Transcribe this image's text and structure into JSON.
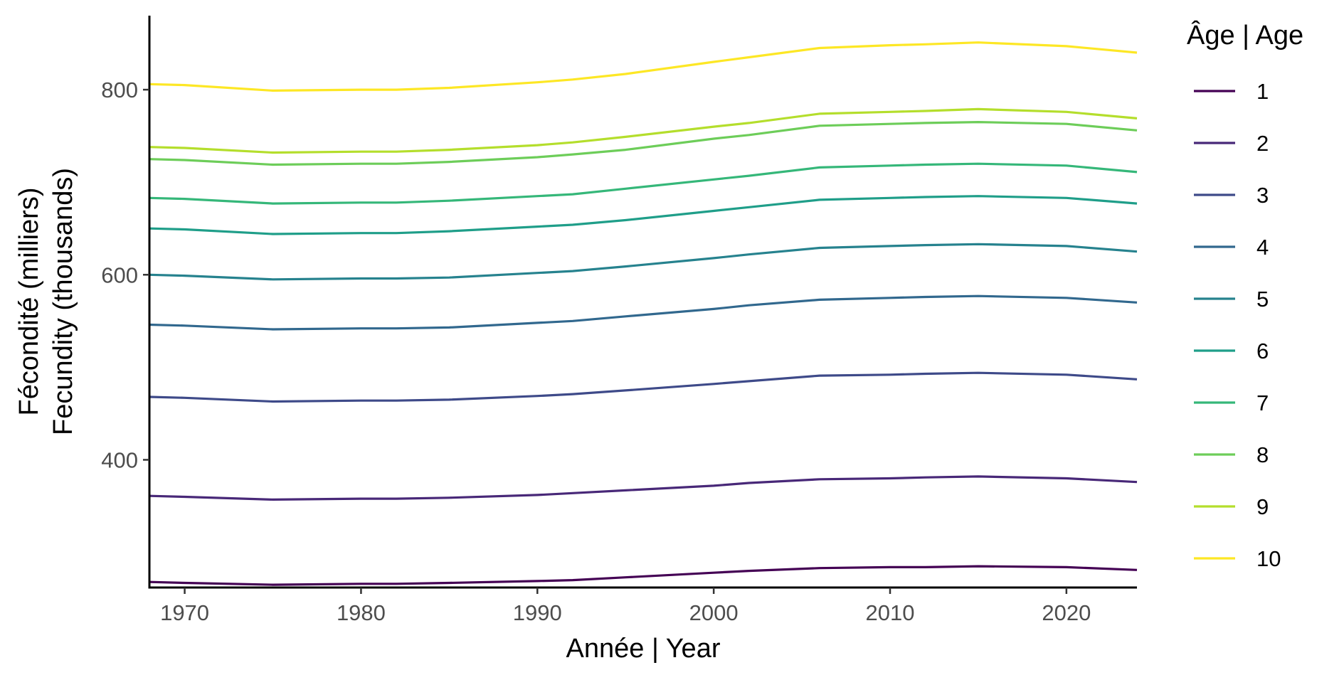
{
  "chart_data": {
    "type": "line",
    "title": "",
    "xlabel": "Année | Year",
    "ylabel_lines": [
      "Fécondité (milliers)",
      "Fecundity (thousands)"
    ],
    "xlim": [
      1968,
      2024
    ],
    "ylim": [
      262,
      880
    ],
    "x_ticks": [
      1970,
      1980,
      1990,
      2000,
      2010,
      2020
    ],
    "y_ticks": [
      400,
      600,
      800
    ],
    "grid": false,
    "legend": {
      "title": "Âge | Age",
      "position": "right"
    },
    "x": [
      1968,
      1970,
      1975,
      1980,
      1982,
      1985,
      1990,
      1992,
      1995,
      2000,
      2002,
      2006,
      2010,
      2012,
      2015,
      2020,
      2024
    ],
    "series": [
      {
        "name": "1",
        "color": "#440154",
        "values": [
          268,
          267,
          265,
          266,
          266,
          267,
          269,
          270,
          273,
          278,
          280,
          283,
          284,
          284,
          285,
          284,
          281
        ]
      },
      {
        "name": "2",
        "color": "#482878",
        "values": [
          361,
          360,
          357,
          358,
          358,
          359,
          362,
          364,
          367,
          372,
          375,
          379,
          380,
          381,
          382,
          380,
          376
        ]
      },
      {
        "name": "3",
        "color": "#3E4A89",
        "values": [
          468,
          467,
          463,
          464,
          464,
          465,
          469,
          471,
          475,
          482,
          485,
          491,
          492,
          493,
          494,
          492,
          487
        ]
      },
      {
        "name": "4",
        "color": "#31688E",
        "values": [
          546,
          545,
          541,
          542,
          542,
          543,
          548,
          550,
          555,
          563,
          567,
          573,
          575,
          576,
          577,
          575,
          570
        ]
      },
      {
        "name": "5",
        "color": "#26828E",
        "values": [
          600,
          599,
          595,
          596,
          596,
          597,
          602,
          604,
          609,
          618,
          622,
          629,
          631,
          632,
          633,
          631,
          625
        ]
      },
      {
        "name": "6",
        "color": "#1F9E89",
        "values": [
          650,
          649,
          644,
          645,
          645,
          647,
          652,
          654,
          659,
          669,
          673,
          681,
          683,
          684,
          685,
          683,
          677
        ]
      },
      {
        "name": "7",
        "color": "#35B779",
        "values": [
          683,
          682,
          677,
          678,
          678,
          680,
          685,
          687,
          693,
          703,
          707,
          716,
          718,
          719,
          720,
          718,
          711
        ]
      },
      {
        "name": "8",
        "color": "#6DCD59",
        "values": [
          725,
          724,
          719,
          720,
          720,
          722,
          727,
          730,
          735,
          747,
          751,
          761,
          763,
          764,
          765,
          763,
          756
        ]
      },
      {
        "name": "9",
        "color": "#B4DE2C",
        "values": [
          738,
          737,
          732,
          733,
          733,
          735,
          740,
          743,
          749,
          760,
          764,
          774,
          776,
          777,
          779,
          776,
          769
        ]
      },
      {
        "name": "10",
        "color": "#FDE725",
        "values": [
          806,
          805,
          799,
          800,
          800,
          802,
          808,
          811,
          817,
          830,
          835,
          845,
          848,
          849,
          851,
          847,
          840
        ]
      }
    ]
  }
}
